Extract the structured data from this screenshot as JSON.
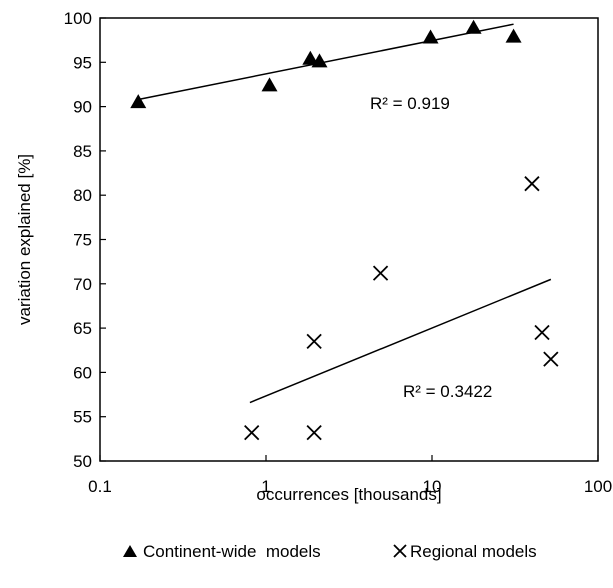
{
  "chart_data": {
    "type": "scatter",
    "xscale": "log",
    "xlim": [
      0.1,
      100
    ],
    "ylim": [
      50,
      100
    ],
    "xticks": [
      0.1,
      1,
      10,
      100
    ],
    "xtick_labels": [
      "0.1",
      "1",
      "10",
      "100"
    ],
    "yticks": [
      50,
      55,
      60,
      65,
      70,
      75,
      80,
      85,
      90,
      95,
      100
    ],
    "ytick_labels": [
      "50",
      "55",
      "60",
      "65",
      "70",
      "75",
      "80",
      "85",
      "90",
      "95",
      "100"
    ],
    "xlabel": "occurrences [thousands]",
    "ylabel": "variation explained  [%]",
    "grid": false,
    "legend_position": "bottom",
    "series": [
      {
        "name": "Continent-wide  models",
        "marker": "triangle",
        "color": "#000000",
        "points": [
          {
            "x": 0.17,
            "y": 90.5
          },
          {
            "x": 1.05,
            "y": 92.4
          },
          {
            "x": 1.85,
            "y": 95.4
          },
          {
            "x": 2.1,
            "y": 95.1
          },
          {
            "x": 9.8,
            "y": 97.8
          },
          {
            "x": 17.8,
            "y": 98.9
          },
          {
            "x": 31,
            "y": 97.9
          }
        ],
        "trendline": {
          "x": [
            0.17,
            31
          ],
          "y": [
            90.8,
            99.3
          ]
        },
        "r2_label": "R² = 0.919"
      },
      {
        "name": "Regional models",
        "marker": "x",
        "color": "#000000",
        "points": [
          {
            "x": 0.82,
            "y": 53.2
          },
          {
            "x": 1.95,
            "y": 53.2
          },
          {
            "x": 1.95,
            "y": 63.5
          },
          {
            "x": 4.9,
            "y": 71.2
          },
          {
            "x": 40,
            "y": 81.3
          },
          {
            "x": 46,
            "y": 64.5
          },
          {
            "x": 52,
            "y": 61.5
          }
        ],
        "trendline": {
          "x": [
            0.8,
            52
          ],
          "y": [
            56.6,
            70.5
          ]
        },
        "r2_label": "R² = 0.3422"
      }
    ]
  }
}
